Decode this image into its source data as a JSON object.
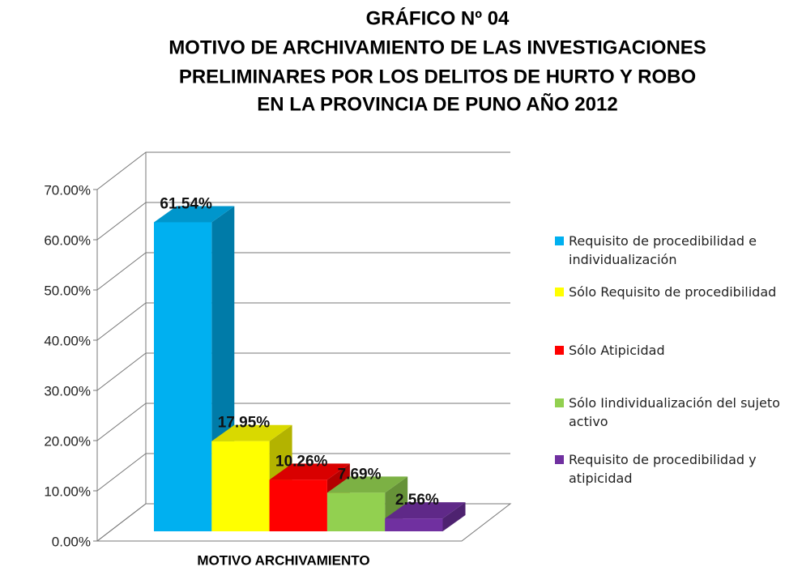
{
  "chart_data": {
    "type": "bar3d",
    "title": [
      "GRÁFICO Nº 04",
      "MOTIVO DE ARCHIVAMIENTO DE LAS INVESTIGACIONES",
      "PRELIMINARES POR LOS DELITOS DE HURTO Y ROBO",
      "EN LA PROVINCIA DE PUNO AÑO 2012"
    ],
    "categories": [
      "MOTIVO ARCHIVAMIENTO"
    ],
    "series": [
      {
        "name": "Requisito de procedibilidad e individualización",
        "color": "#00b0f0",
        "values": [
          61.54
        ],
        "value_labels": [
          "61.54%"
        ]
      },
      {
        "name": "Sólo Requisito de procedibilidad",
        "color": "#ffff00",
        "values": [
          17.95
        ],
        "value_labels": [
          "17.95%"
        ]
      },
      {
        "name": "Sólo Atipicidad",
        "color": "#ff0000",
        "values": [
          10.26
        ],
        "value_labels": [
          "10.26%"
        ]
      },
      {
        "name": "Sólo Iindividualización del sujeto activo",
        "color": "#92d050",
        "values": [
          7.69
        ],
        "value_labels": [
          "7.69%"
        ]
      },
      {
        "name": "Requisito de procedibilidad y atipicidad",
        "color": "#7030a0",
        "values": [
          2.56
        ],
        "value_labels": [
          "2.56%"
        ]
      }
    ],
    "ylim": [
      0,
      70
    ],
    "yticks": [
      {
        "value": 0,
        "label": "0.00%"
      },
      {
        "value": 10,
        "label": "10.00%"
      },
      {
        "value": 20,
        "label": "20.00%"
      },
      {
        "value": 30,
        "label": "30.00%"
      },
      {
        "value": 40,
        "label": "40.00%"
      },
      {
        "value": 50,
        "label": "50.00%"
      },
      {
        "value": 60,
        "label": "60.00%"
      },
      {
        "value": 70,
        "label": "70.00%"
      }
    ],
    "grid": true,
    "legend": "right"
  }
}
